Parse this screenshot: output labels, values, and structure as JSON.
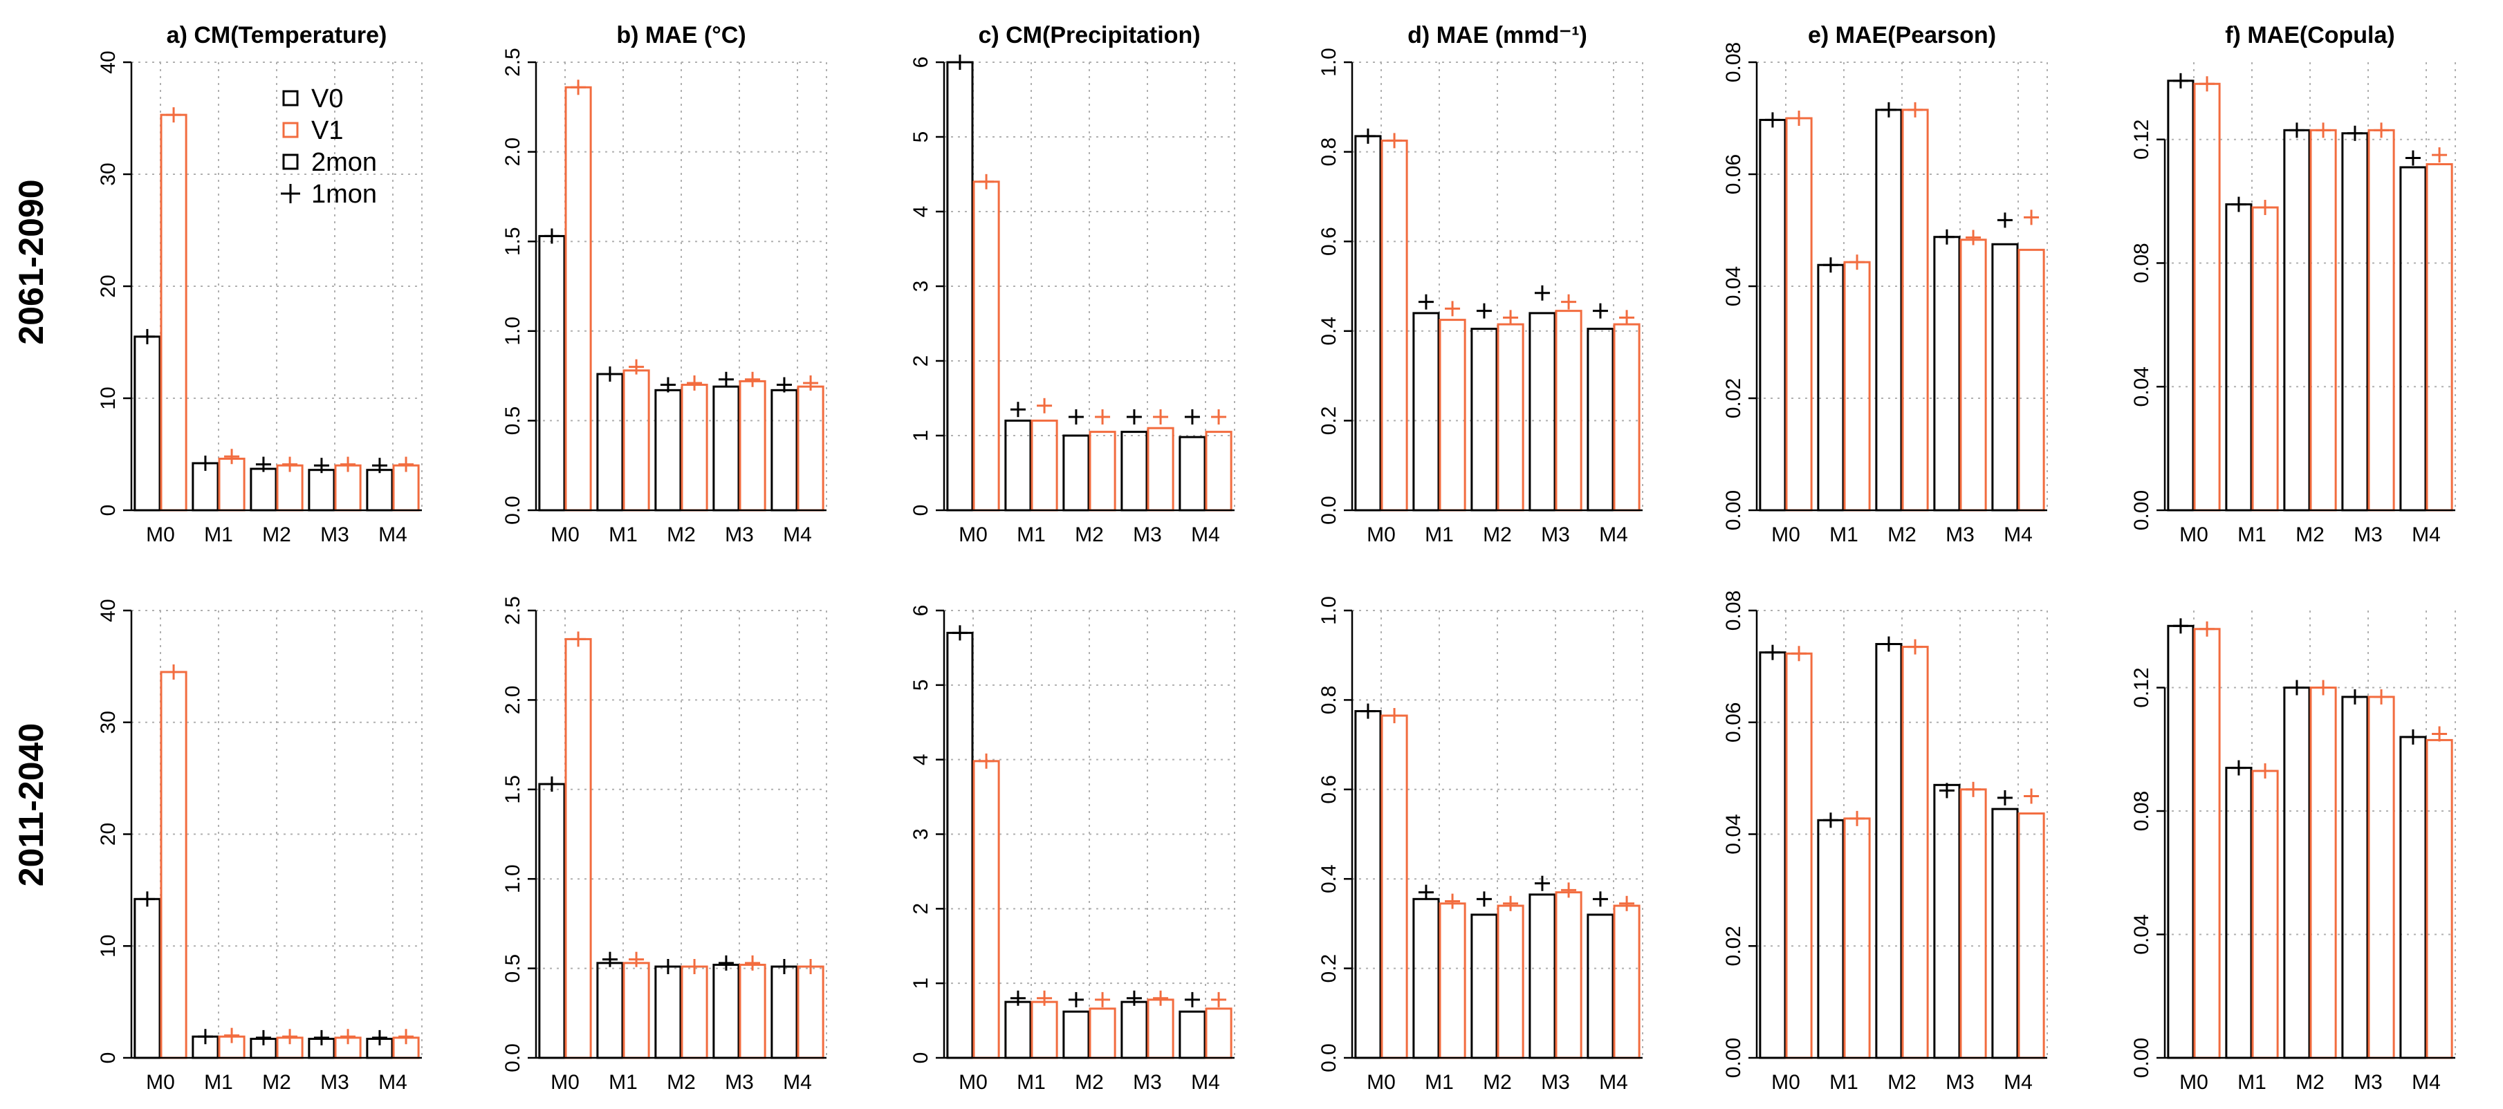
{
  "row_labels": [
    "2061-2090",
    "2011-2040"
  ],
  "legend": {
    "entries": [
      {
        "label": "V0",
        "marker": "square",
        "color": "#000000"
      },
      {
        "label": "V1",
        "marker": "square",
        "color": "#F26C3F"
      },
      {
        "label": "2mon",
        "marker": "square",
        "color": "#000000"
      },
      {
        "label": "1mon",
        "marker": "plus",
        "color": "#000000"
      }
    ]
  },
  "colors": {
    "v0": "#000000",
    "v1": "#F26C3F",
    "grid": "#b0b0b0"
  },
  "chart_data": [
    {
      "type": "bar",
      "period": "2061-2090",
      "title": "a) CM(Temperature)",
      "categories": [
        "M0",
        "M1",
        "M2",
        "M3",
        "M4"
      ],
      "ylim": [
        0,
        40
      ],
      "yticks": [
        0,
        10,
        20,
        30,
        40
      ],
      "ytick_labels": [
        "0",
        "10",
        "20",
        "30",
        "40"
      ],
      "legend": "top-right",
      "series": [
        {
          "name": "V0",
          "bar": [
            15.5,
            4.2,
            3.7,
            3.6,
            3.6
          ],
          "plus": [
            15.5,
            4.2,
            4.1,
            4.0,
            4.0
          ]
        },
        {
          "name": "V1",
          "bar": [
            35.3,
            4.6,
            4.0,
            4.0,
            4.0
          ],
          "plus": [
            35.3,
            4.8,
            4.1,
            4.1,
            4.1
          ]
        }
      ]
    },
    {
      "type": "bar",
      "period": "2061-2090",
      "title": "b) MAE (°C)",
      "categories": [
        "M0",
        "M1",
        "M2",
        "M3",
        "M4"
      ],
      "ylim": [
        0,
        2.5
      ],
      "yticks": [
        0,
        0.5,
        1.0,
        1.5,
        2.0,
        2.5
      ],
      "ytick_labels": [
        "0.0",
        "0.5",
        "1.0",
        "1.5",
        "2.0",
        "2.5"
      ],
      "series": [
        {
          "name": "V0",
          "bar": [
            1.53,
            0.76,
            0.67,
            0.69,
            0.67
          ],
          "plus": [
            1.53,
            0.76,
            0.7,
            0.73,
            0.7
          ]
        },
        {
          "name": "V1",
          "bar": [
            2.36,
            0.78,
            0.7,
            0.72,
            0.69
          ],
          "plus": [
            2.36,
            0.8,
            0.71,
            0.73,
            0.71
          ]
        }
      ]
    },
    {
      "type": "bar",
      "period": "2061-2090",
      "title": "c) CM(Precipitation)",
      "categories": [
        "M0",
        "M1",
        "M2",
        "M3",
        "M4"
      ],
      "ylim": [
        0,
        6
      ],
      "yticks": [
        0,
        1,
        2,
        3,
        4,
        5,
        6
      ],
      "ytick_labels": [
        "0",
        "1",
        "2",
        "3",
        "4",
        "5",
        "6"
      ],
      "series": [
        {
          "name": "V0",
          "bar": [
            6.0,
            1.2,
            1.0,
            1.05,
            0.98
          ],
          "plus": [
            6.0,
            1.35,
            1.25,
            1.25,
            1.25
          ]
        },
        {
          "name": "V1",
          "bar": [
            4.4,
            1.2,
            1.05,
            1.1,
            1.05
          ],
          "plus": [
            4.4,
            1.4,
            1.25,
            1.25,
            1.25
          ]
        }
      ]
    },
    {
      "type": "bar",
      "period": "2061-2090",
      "title": "d) MAE (mmd⁻¹)",
      "categories": [
        "M0",
        "M1",
        "M2",
        "M3",
        "M4"
      ],
      "ylim": [
        0,
        1.0
      ],
      "yticks": [
        0,
        0.2,
        0.4,
        0.6,
        0.8,
        1.0
      ],
      "ytick_labels": [
        "0.0",
        "0.2",
        "0.4",
        "0.6",
        "0.8",
        "1.0"
      ],
      "series": [
        {
          "name": "V0",
          "bar": [
            0.835,
            0.44,
            0.405,
            0.44,
            0.405
          ],
          "plus": [
            0.835,
            0.465,
            0.445,
            0.485,
            0.445
          ]
        },
        {
          "name": "V1",
          "bar": [
            0.825,
            0.425,
            0.415,
            0.445,
            0.415
          ],
          "plus": [
            0.825,
            0.45,
            0.43,
            0.465,
            0.43
          ]
        }
      ]
    },
    {
      "type": "bar",
      "period": "2061-2090",
      "title": "e) MAE(Pearson)",
      "categories": [
        "M0",
        "M1",
        "M2",
        "M3",
        "M4"
      ],
      "ylim": [
        0,
        0.08
      ],
      "yticks": [
        0,
        0.02,
        0.04,
        0.06,
        0.08
      ],
      "ytick_labels": [
        "0.00",
        "0.02",
        "0.04",
        "0.06",
        "0.08"
      ],
      "series": [
        {
          "name": "V0",
          "bar": [
            0.0697,
            0.0438,
            0.0715,
            0.0488,
            0.0475
          ],
          "plus": [
            0.0697,
            0.0438,
            0.0715,
            0.0488,
            0.0518
          ]
        },
        {
          "name": "V1",
          "bar": [
            0.07,
            0.0443,
            0.0715,
            0.0483,
            0.0465
          ],
          "plus": [
            0.07,
            0.0443,
            0.0715,
            0.0487,
            0.0523
          ]
        }
      ]
    },
    {
      "type": "bar",
      "period": "2061-2090",
      "title": "f) MAE(Copula)",
      "categories": [
        "M0",
        "M1",
        "M2",
        "M3",
        "M4"
      ],
      "ylim": [
        0,
        0.145
      ],
      "yticks": [
        0,
        0.04,
        0.08,
        0.12
      ],
      "ytick_labels": [
        "0.00",
        "0.04",
        "0.08",
        "0.12"
      ],
      "series": [
        {
          "name": "V0",
          "bar": [
            0.139,
            0.099,
            0.123,
            0.122,
            0.111
          ],
          "plus": [
            0.139,
            0.099,
            0.123,
            0.122,
            0.114
          ]
        },
        {
          "name": "V1",
          "bar": [
            0.138,
            0.098,
            0.123,
            0.123,
            0.112
          ],
          "plus": [
            0.138,
            0.098,
            0.123,
            0.123,
            0.115
          ]
        }
      ]
    },
    {
      "type": "bar",
      "period": "2011-2040",
      "title": "",
      "categories": [
        "M0",
        "M1",
        "M2",
        "M3",
        "M4"
      ],
      "ylim": [
        0,
        40
      ],
      "yticks": [
        0,
        10,
        20,
        30,
        40
      ],
      "ytick_labels": [
        "0",
        "10",
        "20",
        "30",
        "40"
      ],
      "series": [
        {
          "name": "V0",
          "bar": [
            14.2,
            1.9,
            1.7,
            1.7,
            1.7
          ],
          "plus": [
            14.2,
            1.9,
            1.8,
            1.8,
            1.8
          ]
        },
        {
          "name": "V1",
          "bar": [
            34.5,
            1.9,
            1.8,
            1.8,
            1.8
          ],
          "plus": [
            34.5,
            2.0,
            1.9,
            1.9,
            1.9
          ]
        }
      ]
    },
    {
      "type": "bar",
      "period": "2011-2040",
      "title": "",
      "categories": [
        "M0",
        "M1",
        "M2",
        "M3",
        "M4"
      ],
      "ylim": [
        0,
        2.5
      ],
      "yticks": [
        0,
        0.5,
        1.0,
        1.5,
        2.0,
        2.5
      ],
      "ytick_labels": [
        "0.0",
        "0.5",
        "1.0",
        "1.5",
        "2.0",
        "2.5"
      ],
      "series": [
        {
          "name": "V0",
          "bar": [
            1.53,
            0.53,
            0.51,
            0.52,
            0.51
          ],
          "plus": [
            1.53,
            0.55,
            0.51,
            0.53,
            0.51
          ]
        },
        {
          "name": "V1",
          "bar": [
            2.34,
            0.53,
            0.51,
            0.52,
            0.51
          ],
          "plus": [
            2.34,
            0.55,
            0.51,
            0.53,
            0.51
          ]
        }
      ]
    },
    {
      "type": "bar",
      "period": "2011-2040",
      "title": "",
      "categories": [
        "M0",
        "M1",
        "M2",
        "M3",
        "M4"
      ],
      "ylim": [
        0,
        6
      ],
      "yticks": [
        0,
        1,
        2,
        3,
        4,
        5,
        6
      ],
      "ytick_labels": [
        "0",
        "1",
        "2",
        "3",
        "4",
        "5",
        "6"
      ],
      "series": [
        {
          "name": "V0",
          "bar": [
            5.7,
            0.75,
            0.62,
            0.75,
            0.62
          ],
          "plus": [
            5.7,
            0.8,
            0.78,
            0.8,
            0.78
          ]
        },
        {
          "name": "V1",
          "bar": [
            3.98,
            0.75,
            0.66,
            0.78,
            0.66
          ],
          "plus": [
            3.98,
            0.8,
            0.78,
            0.8,
            0.78
          ]
        }
      ]
    },
    {
      "type": "bar",
      "period": "2011-2040",
      "title": "",
      "categories": [
        "M0",
        "M1",
        "M2",
        "M3",
        "M4"
      ],
      "ylim": [
        0,
        1.0
      ],
      "yticks": [
        0,
        0.2,
        0.4,
        0.6,
        0.8,
        1.0
      ],
      "ytick_labels": [
        "0.0",
        "0.2",
        "0.4",
        "0.6",
        "0.8",
        "1.0"
      ],
      "series": [
        {
          "name": "V0",
          "bar": [
            0.775,
            0.355,
            0.32,
            0.365,
            0.32
          ],
          "plus": [
            0.775,
            0.37,
            0.355,
            0.39,
            0.355
          ]
        },
        {
          "name": "V1",
          "bar": [
            0.765,
            0.345,
            0.34,
            0.37,
            0.34
          ],
          "plus": [
            0.765,
            0.35,
            0.345,
            0.375,
            0.345
          ]
        }
      ]
    },
    {
      "type": "bar",
      "period": "2011-2040",
      "title": "",
      "categories": [
        "M0",
        "M1",
        "M2",
        "M3",
        "M4"
      ],
      "ylim": [
        0,
        0.08
      ],
      "yticks": [
        0,
        0.02,
        0.04,
        0.06,
        0.08
      ],
      "ytick_labels": [
        "0.00",
        "0.02",
        "0.04",
        "0.06",
        "0.08"
      ],
      "series": [
        {
          "name": "V0",
          "bar": [
            0.0725,
            0.0425,
            0.074,
            0.0488,
            0.0445
          ],
          "plus": [
            0.0725,
            0.0425,
            0.074,
            0.0478,
            0.0465
          ]
        },
        {
          "name": "V1",
          "bar": [
            0.0723,
            0.0428,
            0.0735,
            0.048,
            0.0437
          ],
          "plus": [
            0.0723,
            0.0428,
            0.0735,
            0.048,
            0.0468
          ]
        }
      ]
    },
    {
      "type": "bar",
      "period": "2011-2040",
      "title": "",
      "categories": [
        "M0",
        "M1",
        "M2",
        "M3",
        "M4"
      ],
      "ylim": [
        0,
        0.145
      ],
      "yticks": [
        0,
        0.04,
        0.08,
        0.12
      ],
      "ytick_labels": [
        "0.00",
        "0.04",
        "0.08",
        "0.12"
      ],
      "series": [
        {
          "name": "V0",
          "bar": [
            0.14,
            0.094,
            0.12,
            0.117,
            0.104
          ],
          "plus": [
            0.14,
            0.094,
            0.12,
            0.117,
            0.104
          ]
        },
        {
          "name": "V1",
          "bar": [
            0.139,
            0.093,
            0.12,
            0.117,
            0.103
          ],
          "plus": [
            0.139,
            0.093,
            0.12,
            0.117,
            0.105
          ]
        }
      ]
    }
  ]
}
